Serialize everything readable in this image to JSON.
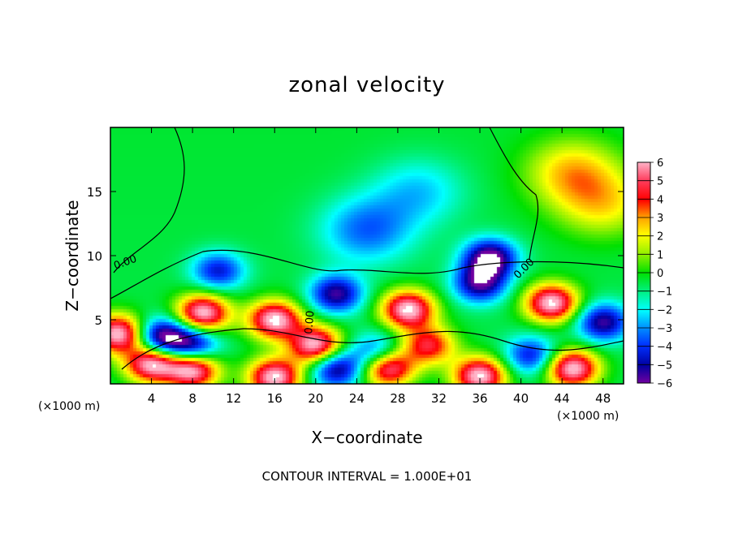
{
  "chart_data": {
    "type": "heatmap",
    "title": "zonal velocity",
    "xlabel": "X−coordinate",
    "ylabel": "Z−coordinate",
    "x_unit": "(×1000 m)",
    "y_unit": "(×1000 m)",
    "xlim": [
      0,
      50
    ],
    "ylim": [
      0,
      20
    ],
    "x_ticks": [
      "4",
      "8",
      "12",
      "16",
      "20",
      "24",
      "28",
      "32",
      "36",
      "40",
      "44",
      "48"
    ],
    "y_ticks": [
      "5",
      "10",
      "15"
    ],
    "colorbar": {
      "labels": [
        "6",
        "5",
        "4",
        "3",
        "2",
        "1",
        "0",
        "−1",
        "−2",
        "−3",
        "−4",
        "−5",
        "−6"
      ],
      "min": -6,
      "max": 6
    },
    "contour_labels": [
      "0.00",
      "0.00",
      "0.00"
    ],
    "footer": "CONTOUR INTERVAL = 1.000E+01",
    "features": [
      {
        "x": 9,
        "z": 5.5,
        "value": 7
      },
      {
        "x": 4,
        "z": 1.6,
        "value": 7
      },
      {
        "x": 0.8,
        "z": 3.9,
        "value": 7
      },
      {
        "x": 16,
        "z": 5.0,
        "value": 7
      },
      {
        "x": 29,
        "z": 5.8,
        "value": 7
      },
      {
        "x": 43,
        "z": 6.3,
        "value": 7
      },
      {
        "x": 8,
        "z": 1.1,
        "value": 7
      },
      {
        "x": 16,
        "z": 0.5,
        "value": 7
      },
      {
        "x": 27,
        "z": 1.3,
        "value": 7
      },
      {
        "x": 36,
        "z": 0.6,
        "value": 7
      },
      {
        "x": 45,
        "z": 1.2,
        "value": 7
      },
      {
        "x": 20,
        "z": 3.0,
        "value": 7
      },
      {
        "x": 31,
        "z": 3.0,
        "value": 5
      },
      {
        "x": 45,
        "z": 16.5,
        "value": 3
      },
      {
        "x": 48,
        "z": 14,
        "value": 2.5
      },
      {
        "x": 5,
        "z": 3.6,
        "value": -6
      },
      {
        "x": 8,
        "z": 3.0,
        "value": -5
      },
      {
        "x": 37,
        "z": 9.8,
        "value": -6
      },
      {
        "x": 36,
        "z": 7.8,
        "value": -5
      },
      {
        "x": 22,
        "z": 7.0,
        "value": -5
      },
      {
        "x": 10.5,
        "z": 8.8,
        "value": -4
      },
      {
        "x": 22,
        "z": 1.2,
        "value": -5
      },
      {
        "x": 26,
        "z": 2.4,
        "value": -4
      },
      {
        "x": 48,
        "z": 4.8,
        "value": -5
      },
      {
        "x": 41,
        "z": 2.2,
        "value": -4
      },
      {
        "x": 25,
        "z": 12,
        "value": -3
      },
      {
        "x": 30,
        "z": 15,
        "value": -2
      }
    ]
  }
}
